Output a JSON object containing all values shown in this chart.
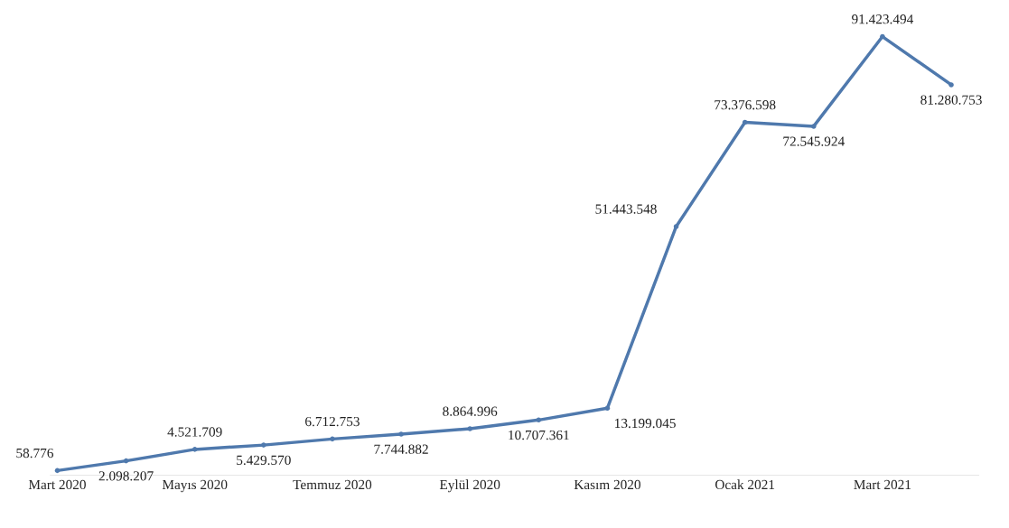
{
  "chart_data": {
    "type": "line",
    "categories": [
      "Mart 2020",
      null,
      "Mayıs 2020",
      null,
      "Temmuz 2020",
      null,
      "Eylül 2020",
      null,
      "Kasım 2020",
      null,
      "Ocak 2021",
      null,
      "Mart 2021",
      null
    ],
    "series": [
      {
        "color": "#4f79ad",
        "values": [
          58776,
          2098207,
          4521709,
          5429570,
          6712753,
          7744882,
          8864996,
          10707361,
          13199045,
          51443548,
          73376598,
          72545924,
          91423494,
          81280753
        ],
        "value_labels": [
          "58.776",
          "2.098.207",
          "4.521.709",
          "5.429.570",
          "6.712.753",
          "7.744.882",
          "8.864.996",
          "10.707.361",
          "13.199.045",
          "51.443.548",
          "73.376.598",
          "72.545.924",
          "91.423.494",
          "81.280.753"
        ]
      }
    ],
    "marker": "circle",
    "grid": false,
    "legend": false
  }
}
